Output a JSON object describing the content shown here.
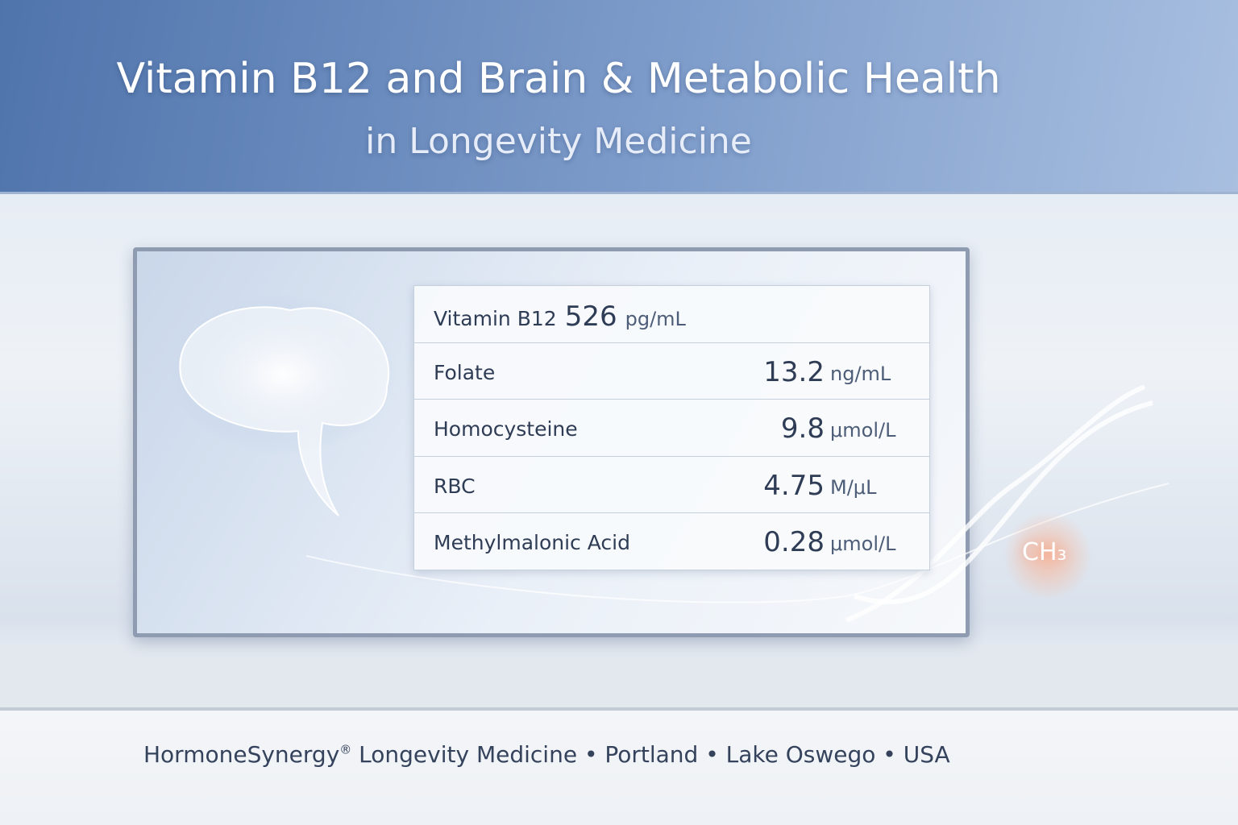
{
  "header": {
    "title": "Vitamin B12 and Brain & Metabolic Health",
    "subtitle": "in Longevity Medicine"
  },
  "table": {
    "rows": [
      {
        "name": "Vitamin B12",
        "value": "526",
        "unit": "pg/mL"
      },
      {
        "name": "Folate",
        "value": "13.2",
        "unit": "ng/mL"
      },
      {
        "name": "Homocysteine",
        "value": "9.8",
        "unit": "μmol/L"
      },
      {
        "name": "RBC",
        "value": "4.75",
        "unit": "M/μL"
      },
      {
        "name": "Methylmalonic Acid",
        "value": "0.28",
        "unit": "μmol/L"
      }
    ]
  },
  "dna_label": "CH₃",
  "footer": {
    "brand": "HormoneSynergy",
    "mark": "®",
    "text": "Longevity Medicine • Portland • Lake Oswego • USA"
  }
}
